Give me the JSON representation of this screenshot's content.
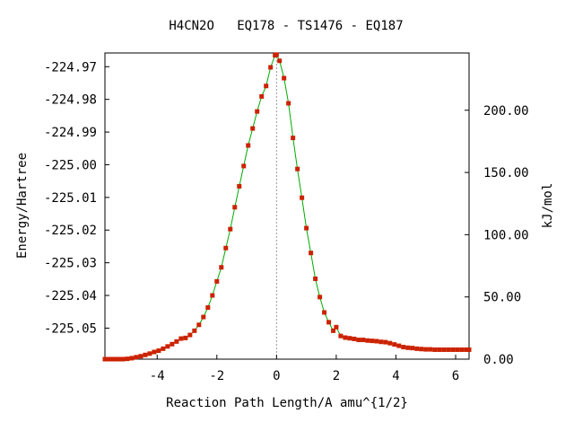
{
  "chart_data": {
    "type": "line",
    "title": "H4CN2O   EQ178 - TS1476 - EQ187",
    "xlabel": "Reaction Path Length/A amu^{1/2}",
    "ylabel": "Energy/Hartree",
    "y2label": "kJ/mol",
    "xlim": [
      -5.75,
      6.45
    ],
    "ylim": [
      -225.0595,
      -224.9658
    ],
    "y2lim": [
      0,
      246
    ],
    "x_ticks": [
      -4,
      -2,
      0,
      2,
      4,
      6
    ],
    "x_tick_labels": [
      "-4",
      "-2",
      "0",
      "2",
      "4",
      "6"
    ],
    "y_ticks": [
      -224.97,
      -224.98,
      -224.99,
      -225.0,
      -225.01,
      -225.02,
      -225.03,
      -225.04,
      -225.05
    ],
    "y_tick_labels": [
      "-224.97",
      "-224.98",
      "-224.99",
      "-225.00",
      "-225.01",
      "-225.02",
      "-225.03",
      "-225.04",
      "-225.05"
    ],
    "y2_ticks": [
      0,
      50,
      100,
      150,
      200
    ],
    "y2_tick_labels": [
      "0.00",
      "50.00",
      "100.00",
      "150.00",
      "200.00"
    ],
    "ts_marker_x": 0,
    "grid": false,
    "colors": {
      "line": "#00aa00",
      "marker": "#cc2200",
      "ts_line": "#999999"
    },
    "series": [
      {
        "x": [
          -5.75,
          -5.6,
          -5.45,
          -5.3,
          -5.15,
          -5.0,
          -4.85,
          -4.7,
          -4.55,
          -4.4,
          -4.25,
          -4.1,
          -3.95,
          -3.8,
          -3.65,
          -3.5,
          -3.35,
          -3.2,
          -3.05,
          -2.9,
          -2.75,
          -2.6,
          -2.45,
          -2.3,
          -2.15,
          -2.0,
          -1.85,
          -1.7,
          -1.55,
          -1.4,
          -1.25,
          -1.1,
          -0.95,
          -0.8,
          -0.65,
          -0.5,
          -0.35,
          -0.2,
          -0.05,
          0.0,
          0.1,
          0.25,
          0.4,
          0.55,
          0.7,
          0.85,
          1.0,
          1.15,
          1.3,
          1.45,
          1.6,
          1.75,
          1.9,
          2.0,
          2.15,
          2.3,
          2.45,
          2.6,
          2.75,
          2.9,
          3.05,
          3.2,
          3.35,
          3.5,
          3.65,
          3.8,
          3.95,
          4.1,
          4.25,
          4.4,
          4.55,
          4.7,
          4.85,
          5.0,
          5.15,
          5.3,
          5.45,
          5.6,
          5.75,
          5.9,
          6.05,
          6.2,
          6.35,
          6.45
        ],
        "y": [
          -225.0595,
          -225.0595,
          -225.0595,
          -225.0595,
          -225.0595,
          -225.0594,
          -225.0592,
          -225.0589,
          -225.0586,
          -225.0582,
          -225.0578,
          -225.0573,
          -225.0569,
          -225.0563,
          -225.0556,
          -225.0549,
          -225.0541,
          -225.0532,
          -225.053,
          -225.0521,
          -225.0508,
          -225.049,
          -225.0466,
          -225.0437,
          -225.04,
          -225.0357,
          -225.0314,
          -225.0255,
          -225.0197,
          -225.013,
          -225.0066,
          -225.0004,
          -224.9941,
          -224.9889,
          -224.9837,
          -224.9791,
          -224.9759,
          -224.9702,
          -224.9665,
          -224.9663,
          -224.9682,
          -224.9735,
          -224.9812,
          -224.9918,
          -225.0013,
          -225.0101,
          -225.0194,
          -225.027,
          -225.0349,
          -225.0405,
          -225.0452,
          -225.0482,
          -225.0508,
          -225.0497,
          -225.0524,
          -225.0529,
          -225.0531,
          -225.0533,
          -225.0536,
          -225.0536,
          -225.0538,
          -225.0539,
          -225.054,
          -225.0542,
          -225.0543,
          -225.0546,
          -225.055,
          -225.0554,
          -225.0558,
          -225.056,
          -225.0561,
          -225.0563,
          -225.0564,
          -225.0565,
          -225.0565,
          -225.0566,
          -225.0566,
          -225.0566,
          -225.0566,
          -225.0566,
          -225.0566,
          -225.0566,
          -225.0566,
          -225.0566
        ]
      }
    ]
  }
}
